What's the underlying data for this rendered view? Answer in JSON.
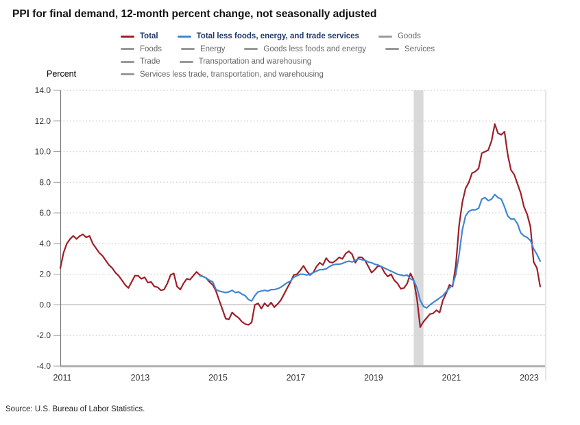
{
  "title": "PPI for final demand, 12-month percent change, not seasonally adjusted",
  "y_axis_label": "Percent",
  "source": "Source: U.S. Bureau of Labor Statistics.",
  "colors": {
    "total_line": "#9e1e28",
    "less_fet_line": "#3f86d4",
    "inactive_swatch": "#999999",
    "active_text": "#1f3a68",
    "inactive_text": "#666666",
    "gridline": "#cfcfcf",
    "zero_line": "#9a9a9a",
    "bottom_axis": "#aeaeae",
    "y_axis_line": "#777777",
    "right_border": "#c8c8c8",
    "recession_band": "#d9d9d9"
  },
  "legend": {
    "rows": [
      [
        {
          "label": "Total",
          "swatch": "#9e1e28",
          "active": true
        },
        {
          "label": "Total less foods, energy, and trade services",
          "swatch": "#3f86d4",
          "active": true
        },
        {
          "label": "Goods",
          "swatch": "#999999",
          "active": false
        }
      ],
      [
        {
          "label": "Foods",
          "swatch": "#999999",
          "active": false
        },
        {
          "label": "Energy",
          "swatch": "#999999",
          "active": false
        },
        {
          "label": "Goods less foods and energy",
          "swatch": "#999999",
          "active": false
        },
        {
          "label": "Services",
          "swatch": "#999999",
          "active": false
        }
      ],
      [
        {
          "label": "Trade",
          "swatch": "#999999",
          "active": false
        },
        {
          "label": "Transportation and warehousing",
          "swatch": "#999999",
          "active": false
        }
      ],
      [
        {
          "label": "Services less trade, transportation, and warehousing",
          "swatch": "#999999",
          "active": false
        }
      ]
    ]
  },
  "chart_data": {
    "type": "line",
    "title": "PPI for final demand, 12-month percent change, not seasonally adjusted",
    "ylabel": "Percent",
    "x_start": "2011-01",
    "x_end": "2023-05",
    "x_frequency": "monthly",
    "x_tick_labels": [
      "2011",
      "2013",
      "2015",
      "2017",
      "2019",
      "2021",
      "2023"
    ],
    "ylim": [
      -4,
      14
    ],
    "y_ticks": [
      {
        "v": 14,
        "label": "14.0"
      },
      {
        "v": 12,
        "label": "12.0"
      },
      {
        "v": 10,
        "label": "10.0"
      },
      {
        "v": 8,
        "label": "8.0"
      },
      {
        "v": 6,
        "label": "6.0"
      },
      {
        "v": 4,
        "label": "4.0"
      },
      {
        "v": 2,
        "label": "2.0"
      },
      {
        "v": 0,
        "label": "0.0"
      },
      {
        "v": -2,
        "label": "-2.0"
      },
      {
        "v": -4,
        "label": "-4.0"
      }
    ],
    "grid": "horizontal dotted",
    "legend_position": "top",
    "recession_band": {
      "start": "2020-02",
      "end": "2020-04"
    },
    "series": [
      {
        "name": "Total",
        "color": "#9e1e28",
        "start": "2011-01",
        "values": [
          2.4,
          3.4,
          4.0,
          4.3,
          4.5,
          4.3,
          4.5,
          4.6,
          4.4,
          4.5,
          4.0,
          3.7,
          3.4,
          3.2,
          2.9,
          2.6,
          2.4,
          2.1,
          1.9,
          1.6,
          1.3,
          1.1,
          1.5,
          1.9,
          1.9,
          1.7,
          1.8,
          1.45,
          1.5,
          1.2,
          1.15,
          0.95,
          1.0,
          1.4,
          1.95,
          2.05,
          1.2,
          1.0,
          1.4,
          1.7,
          1.65,
          1.9,
          2.15,
          1.95,
          1.85,
          1.75,
          1.5,
          1.3,
          0.9,
          0.3,
          -0.3,
          -0.9,
          -0.95,
          -0.5,
          -0.7,
          -0.85,
          -1.1,
          -1.25,
          -1.3,
          -1.15,
          0.0,
          0.1,
          -0.25,
          0.1,
          -0.1,
          0.15,
          -0.15,
          0.05,
          0.3,
          0.7,
          1.1,
          1.5,
          1.95,
          2.0,
          2.25,
          2.55,
          2.2,
          1.95,
          2.1,
          2.5,
          2.75,
          2.6,
          3.05,
          2.8,
          2.75,
          2.9,
          3.1,
          3.0,
          3.35,
          3.5,
          3.3,
          2.75,
          3.1,
          3.1,
          2.9,
          2.5,
          2.1,
          2.3,
          2.55,
          2.5,
          2.1,
          1.85,
          2.0,
          1.6,
          1.4,
          1.05,
          1.1,
          1.4,
          2.05,
          1.6,
          0.4,
          -1.45,
          -1.1,
          -0.85,
          -0.6,
          -0.55,
          -0.35,
          -0.5,
          0.3,
          0.75,
          1.3,
          1.2,
          2.6,
          5.2,
          6.7,
          7.6,
          8.0,
          8.6,
          8.7,
          8.9,
          9.9,
          10.0,
          10.1,
          10.7,
          11.8,
          11.2,
          11.1,
          11.3,
          9.8,
          8.8,
          8.5,
          7.9,
          7.3,
          6.4,
          5.9,
          5.1,
          2.8,
          2.4,
          1.2
        ]
      },
      {
        "name": "Total less foods, energy, and trade services",
        "color": "#3f86d4",
        "start": "2014-08",
        "values": [
          1.9,
          1.85,
          1.75,
          1.6,
          1.5,
          1.0,
          0.9,
          0.85,
          0.8,
          0.85,
          0.95,
          0.8,
          0.85,
          0.7,
          0.6,
          0.35,
          0.25,
          0.6,
          0.85,
          0.9,
          0.95,
          0.9,
          1.0,
          1.0,
          1.05,
          1.15,
          1.3,
          1.45,
          1.55,
          1.8,
          1.9,
          2.0,
          2.0,
          1.95,
          2.0,
          2.1,
          2.2,
          2.3,
          2.3,
          2.35,
          2.5,
          2.6,
          2.65,
          2.65,
          2.7,
          2.8,
          2.85,
          2.8,
          2.9,
          3.0,
          2.95,
          2.9,
          2.8,
          2.75,
          2.65,
          2.6,
          2.5,
          2.4,
          2.3,
          2.2,
          2.1,
          2.0,
          1.95,
          1.9,
          1.95,
          1.7,
          1.6,
          1.1,
          0.3,
          -0.1,
          -0.2,
          0.0,
          0.15,
          0.3,
          0.45,
          0.6,
          0.85,
          1.1,
          1.3,
          2.0,
          3.3,
          4.9,
          5.8,
          6.1,
          6.2,
          6.2,
          6.3,
          6.9,
          7.0,
          6.8,
          6.9,
          7.2,
          7.0,
          6.9,
          6.4,
          5.8,
          5.6,
          5.6,
          5.3,
          4.7,
          4.5,
          4.4,
          4.2,
          3.65,
          3.3,
          2.85
        ]
      }
    ]
  }
}
